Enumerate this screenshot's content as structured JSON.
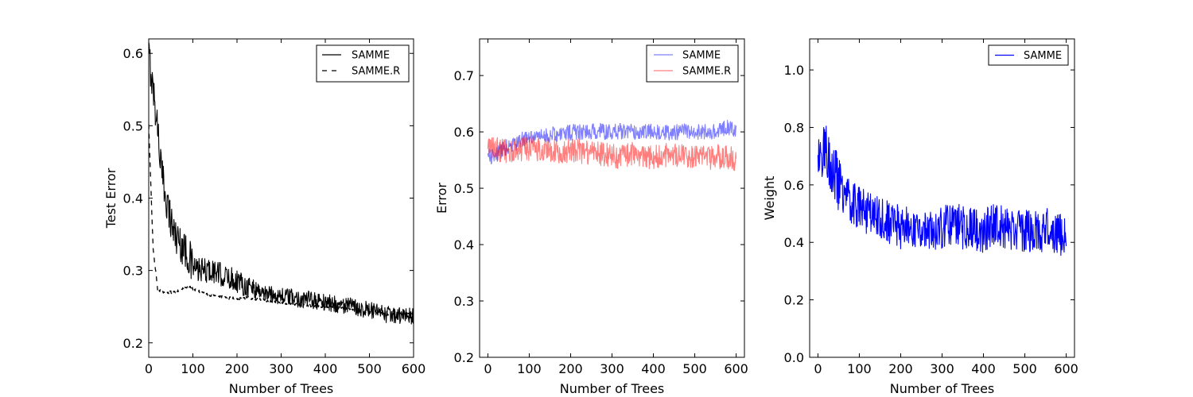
{
  "chart_data": [
    {
      "type": "line",
      "xlabel": "Number of Trees",
      "ylabel": "Test Error",
      "xlim": [
        0,
        600
      ],
      "ylim": [
        0.18,
        0.62
      ],
      "xticks": [
        0,
        100,
        200,
        300,
        400,
        500,
        600
      ],
      "xtick_labels": [
        "0",
        "100",
        "200",
        "300",
        "400",
        "500",
        "600"
      ],
      "yticks": [
        0.2,
        0.3,
        0.4,
        0.5,
        0.6
      ],
      "ytick_labels": [
        "0.2",
        "0.3",
        "0.4",
        "0.5",
        "0.6"
      ],
      "legend_position": "top-right",
      "x_step": 10,
      "series": [
        {
          "name": "SAMME",
          "color": "#000000",
          "style": "solid",
          "opacity": 1,
          "noise": 0.012,
          "values": [
            0.6,
            0.55,
            0.5,
            0.43,
            0.4,
            0.37,
            0.35,
            0.34,
            0.33,
            0.32,
            0.305,
            0.3,
            0.3,
            0.3,
            0.3,
            0.298,
            0.295,
            0.292,
            0.29,
            0.288,
            0.286,
            0.283,
            0.28,
            0.277,
            0.275,
            0.272,
            0.27,
            0.268,
            0.267,
            0.266,
            0.265,
            0.264,
            0.263,
            0.262,
            0.261,
            0.26,
            0.26,
            0.259,
            0.258,
            0.257,
            0.256,
            0.255,
            0.254,
            0.253,
            0.252,
            0.251,
            0.25,
            0.249,
            0.248,
            0.247,
            0.245,
            0.243,
            0.241,
            0.24,
            0.239,
            0.238,
            0.238,
            0.237,
            0.237,
            0.237,
            0.238
          ]
        },
        {
          "name": "SAMME.R",
          "color": "#000000",
          "style": "dashed",
          "opacity": 1,
          "noise": 0.002,
          "values": [
            0.5,
            0.33,
            0.275,
            0.27,
            0.268,
            0.27,
            0.27,
            0.272,
            0.277,
            0.278,
            0.275,
            0.272,
            0.27,
            0.268,
            0.266,
            0.265,
            0.264,
            0.263,
            0.262,
            0.262,
            0.261,
            0.261,
            0.262,
            0.262,
            0.261,
            0.26,
            0.259,
            0.258,
            0.257,
            0.256,
            0.255,
            0.254,
            0.254,
            0.253,
            0.253,
            0.252,
            0.252,
            0.251,
            0.251,
            0.25,
            0.25,
            0.249,
            0.249,
            0.248,
            0.248,
            0.247,
            0.246,
            0.245,
            0.244,
            0.243,
            0.242,
            0.241,
            0.24,
            0.24,
            0.239,
            0.239,
            0.239,
            0.24,
            0.24,
            0.241,
            0.241
          ]
        }
      ]
    },
    {
      "type": "line",
      "xlabel": "Number of Trees",
      "ylabel": "Error",
      "xlim": [
        -20,
        620
      ],
      "ylim": [
        0.2,
        0.765
      ],
      "xticks": [
        0,
        100,
        200,
        300,
        400,
        500,
        600
      ],
      "xtick_labels": [
        "0",
        "100",
        "200",
        "300",
        "400",
        "500",
        "600"
      ],
      "yticks": [
        0.2,
        0.3,
        0.4,
        0.5,
        0.6,
        0.7
      ],
      "ytick_labels": [
        "0.2",
        "0.3",
        "0.4",
        "0.5",
        "0.6",
        "0.7"
      ],
      "legend_position": "top-right",
      "x_step": 10,
      "series": [
        {
          "name": "SAMME",
          "color": "#0000ff",
          "style": "solid",
          "opacity": 0.5,
          "noise": 0.014,
          "values": [
            0.56,
            0.555,
            0.56,
            0.565,
            0.57,
            0.575,
            0.578,
            0.58,
            0.585,
            0.588,
            0.59,
            0.59,
            0.592,
            0.593,
            0.594,
            0.595,
            0.596,
            0.597,
            0.598,
            0.598,
            0.599,
            0.6,
            0.6,
            0.6,
            0.601,
            0.601,
            0.602,
            0.602,
            0.6,
            0.6,
            0.6,
            0.6,
            0.601,
            0.601,
            0.6,
            0.6,
            0.6,
            0.6,
            0.6,
            0.6,
            0.6,
            0.6,
            0.598,
            0.598,
            0.598,
            0.598,
            0.6,
            0.6,
            0.602,
            0.602,
            0.6,
            0.6,
            0.6,
            0.6,
            0.6,
            0.602,
            0.605,
            0.607,
            0.607,
            0.605,
            0.603
          ]
        },
        {
          "name": "SAMME.R",
          "color": "#ff0000",
          "style": "solid",
          "opacity": 0.5,
          "noise": 0.022,
          "values": [
            0.58,
            0.57,
            0.57,
            0.568,
            0.566,
            0.565,
            0.566,
            0.567,
            0.57,
            0.57,
            0.57,
            0.57,
            0.57,
            0.57,
            0.568,
            0.568,
            0.567,
            0.566,
            0.566,
            0.567,
            0.568,
            0.567,
            0.566,
            0.565,
            0.564,
            0.563,
            0.562,
            0.56,
            0.56,
            0.558,
            0.556,
            0.556,
            0.556,
            0.558,
            0.56,
            0.56,
            0.56,
            0.558,
            0.556,
            0.556,
            0.556,
            0.557,
            0.558,
            0.558,
            0.558,
            0.558,
            0.558,
            0.558,
            0.558,
            0.558,
            0.558,
            0.557,
            0.556,
            0.555,
            0.555,
            0.555,
            0.556,
            0.557,
            0.556,
            0.554,
            0.552
          ]
        }
      ]
    },
    {
      "type": "line",
      "xlabel": "Number of Trees",
      "ylabel": "Weight",
      "xlim": [
        -20,
        620
      ],
      "ylim": [
        0.0,
        1.108
      ],
      "xticks": [
        0,
        100,
        200,
        300,
        400,
        500,
        600
      ],
      "xtick_labels": [
        "0",
        "100",
        "200",
        "300",
        "400",
        "500",
        "600"
      ],
      "yticks": [
        0.0,
        0.2,
        0.4,
        0.6,
        0.8,
        1.0
      ],
      "ytick_labels": [
        "0.0",
        "0.2",
        "0.4",
        "0.6",
        "0.8",
        "1.0"
      ],
      "legend_position": "top-right",
      "x_step": 10,
      "series": [
        {
          "name": "SAMME",
          "color": "#0000ff",
          "style": "solid",
          "opacity": 1,
          "noise": 0.075,
          "values": [
            0.7,
            0.72,
            0.72,
            0.68,
            0.64,
            0.6,
            0.58,
            0.56,
            0.54,
            0.53,
            0.52,
            0.51,
            0.5,
            0.5,
            0.49,
            0.48,
            0.48,
            0.47,
            0.46,
            0.46,
            0.45,
            0.45,
            0.45,
            0.45,
            0.45,
            0.44,
            0.44,
            0.44,
            0.45,
            0.45,
            0.45,
            0.46,
            0.46,
            0.46,
            0.46,
            0.45,
            0.45,
            0.45,
            0.44,
            0.44,
            0.44,
            0.45,
            0.46,
            0.46,
            0.46,
            0.45,
            0.45,
            0.44,
            0.44,
            0.44,
            0.44,
            0.44,
            0.44,
            0.44,
            0.44,
            0.45,
            0.45,
            0.44,
            0.43,
            0.42,
            0.42
          ]
        }
      ]
    }
  ]
}
